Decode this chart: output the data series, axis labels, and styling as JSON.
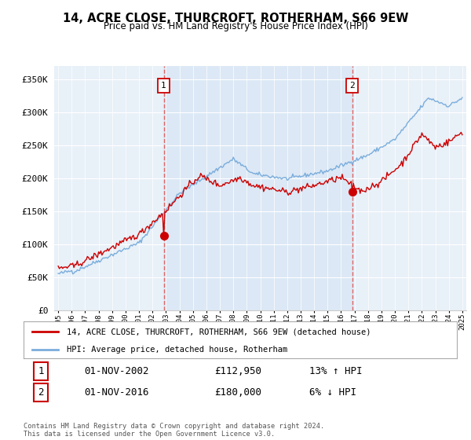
{
  "title": "14, ACRE CLOSE, THURCROFT, ROTHERHAM, S66 9EW",
  "subtitle": "Price paid vs. HM Land Registry's House Price Index (HPI)",
  "ylabel_ticks": [
    "£0",
    "£50K",
    "£100K",
    "£150K",
    "£200K",
    "£250K",
    "£300K",
    "£350K"
  ],
  "ytick_vals": [
    0,
    50000,
    100000,
    150000,
    200000,
    250000,
    300000,
    350000
  ],
  "ylim": [
    0,
    370000
  ],
  "sale1_date": 2002.833,
  "sale1_price": 112950,
  "sale1_label": "1",
  "sale1_date_str": "01-NOV-2002",
  "sale1_pct": "13%",
  "sale1_dir": "↑",
  "sale2_date": 2016.833,
  "sale2_price": 180000,
  "sale2_label": "2",
  "sale2_date_str": "01-NOV-2016",
  "sale2_pct": "6%",
  "sale2_dir": "↓",
  "legend_property": "14, ACRE CLOSE, THURCROFT, ROTHERHAM, S66 9EW (detached house)",
  "legend_hpi": "HPI: Average price, detached house, Rotherham",
  "footnote": "Contains HM Land Registry data © Crown copyright and database right 2024.\nThis data is licensed under the Open Government Licence v3.0.",
  "property_color": "#cc0000",
  "hpi_color": "#7aaddc",
  "vline_color": "#dd6666",
  "shade_color": "#dce8f5",
  "background_color": "#e8f0f8",
  "grid_color": "#ffffff",
  "box_border_color": "#cc0000"
}
